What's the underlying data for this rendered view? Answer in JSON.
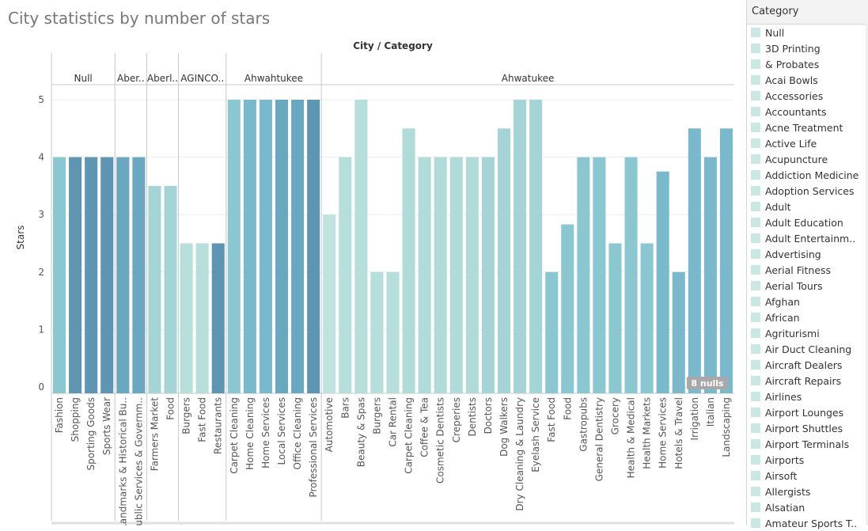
{
  "page_title": "City statistics by number of stars",
  "legend": {
    "title": "Category",
    "items": [
      "Null",
      "3D Printing",
      "& Probates",
      "Acai Bowls",
      "Accessories",
      "Accountants",
      "Acne Treatment",
      "Active Life",
      "Acupuncture",
      "Addiction Medicine",
      "Adoption Services",
      "Adult",
      "Adult Education",
      "Adult Entertainm..",
      "Advertising",
      "Aerial Fitness",
      "Aerial Tours",
      "Afghan",
      "African",
      "Agriturismi",
      "Air Duct Cleaning",
      "Aircraft Dealers",
      "Aircraft Repairs",
      "Airlines",
      "Airport Lounges",
      "Airport Shuttles",
      "Airport Terminals",
      "Airports",
      "Airsoft",
      "Allergists",
      "Alsatian",
      "Amateur Sports T.."
    ]
  },
  "chart_data": {
    "type": "bar",
    "title": "City statistics by number of stars",
    "header_label": "City / Category",
    "xlabel": "",
    "ylabel": "Stars",
    "ylim": [
      0,
      5.5
    ],
    "yticks": [
      0,
      1,
      2,
      3,
      4,
      5
    ],
    "grid": true,
    "null_indicator": "8 nulls",
    "groups": [
      {
        "city": "Null",
        "bars": [
          {
            "category": "Fashion",
            "value": 4,
            "color": "#8ac7d1"
          },
          {
            "category": "Shopping",
            "value": 4,
            "color": "#5d95b3"
          },
          {
            "category": "Sporting Goods",
            "value": 4,
            "color": "#5d95b3"
          },
          {
            "category": "Sports Wear",
            "value": 4,
            "color": "#5d95b3"
          }
        ]
      },
      {
        "city": "Aber..",
        "bars": [
          {
            "category": "Landmarks & Historical Bu..",
            "value": 4,
            "color": "#6aa7c0"
          },
          {
            "category": "Public Services & Governm..",
            "value": 4,
            "color": "#6aa7c0"
          }
        ]
      },
      {
        "city": "Aberl..",
        "bars": [
          {
            "category": "Farmers Market",
            "value": 3.5,
            "color": "#a5d4d6"
          },
          {
            "category": "Food",
            "value": 3.5,
            "color": "#a5d4d6"
          }
        ]
      },
      {
        "city": "AGINCO..",
        "bars": [
          {
            "category": "Burgers",
            "value": 2.5,
            "color": "#b6dedb"
          },
          {
            "category": "Fast Food",
            "value": 2.5,
            "color": "#b6dedb"
          },
          {
            "category": "Restaurants",
            "value": 2.5,
            "color": "#5d95b3"
          }
        ]
      },
      {
        "city": "Ahwahtukee",
        "bars": [
          {
            "category": "Carpet Cleaning",
            "value": 5,
            "color": "#8ac7d1"
          },
          {
            "category": "Home Cleaning",
            "value": 5,
            "color": "#79b9cb"
          },
          {
            "category": "Home Services",
            "value": 5,
            "color": "#79b9cb"
          },
          {
            "category": "Local Services",
            "value": 5,
            "color": "#6aa7c0"
          },
          {
            "category": "Office Cleaning",
            "value": 5,
            "color": "#6aa7c0"
          },
          {
            "category": "Professional Services",
            "value": 5,
            "color": "#5d95b3"
          }
        ]
      },
      {
        "city": "Ahwatukee",
        "bars": [
          {
            "category": "Automotive",
            "value": 3,
            "color": "#c1e3de"
          },
          {
            "category": "Bars",
            "value": 4,
            "color": "#b6dedb"
          },
          {
            "category": "Beauty & Spas",
            "value": 5,
            "color": "#b6dedb"
          },
          {
            "category": "Burgers",
            "value": 2,
            "color": "#b6dedb"
          },
          {
            "category": "Car Rental",
            "value": 2,
            "color": "#b6dedb"
          },
          {
            "category": "Carpet Cleaning",
            "value": 4.5,
            "color": "#b0dbd8"
          },
          {
            "category": "Coffee & Tea",
            "value": 4,
            "color": "#b0dbd8"
          },
          {
            "category": "Cosmetic Dentists",
            "value": 4,
            "color": "#b0dbd8"
          },
          {
            "category": "Creperies",
            "value": 4,
            "color": "#b0dbd8"
          },
          {
            "category": "Dentists",
            "value": 4,
            "color": "#b0dbd8"
          },
          {
            "category": "Doctors",
            "value": 4,
            "color": "#a5d4d6"
          },
          {
            "category": "Dog Walkers",
            "value": 4.5,
            "color": "#a5d4d6"
          },
          {
            "category": "Dry Cleaning & Laundry",
            "value": 5,
            "color": "#a5d4d6"
          },
          {
            "category": "Eyelash Service",
            "value": 5,
            "color": "#a5d4d6"
          },
          {
            "category": "Fast Food",
            "value": 2,
            "color": "#8ac7d1"
          },
          {
            "category": "Food",
            "value": 2.83,
            "color": "#8ac7d1"
          },
          {
            "category": "Gastropubs",
            "value": 4,
            "color": "#8ac7d1"
          },
          {
            "category": "General Dentistry",
            "value": 4,
            "color": "#8ac7d1"
          },
          {
            "category": "Grocery",
            "value": 2.5,
            "color": "#8ac7d1"
          },
          {
            "category": "Health & Medical",
            "value": 4,
            "color": "#8ac7d1"
          },
          {
            "category": "Health Markets",
            "value": 2.5,
            "color": "#8ac7d1"
          },
          {
            "category": "Home Services",
            "value": 3.75,
            "color": "#79b9cb"
          },
          {
            "category": "Hotels & Travel",
            "value": 2,
            "color": "#79b9cb"
          },
          {
            "category": "Irrigation",
            "value": 4.5,
            "color": "#79b9cb"
          },
          {
            "category": "Italian",
            "value": 4,
            "color": "#79b9cb"
          },
          {
            "category": "Landscaping",
            "value": 4.5,
            "color": "#79b9cb"
          }
        ]
      }
    ]
  }
}
